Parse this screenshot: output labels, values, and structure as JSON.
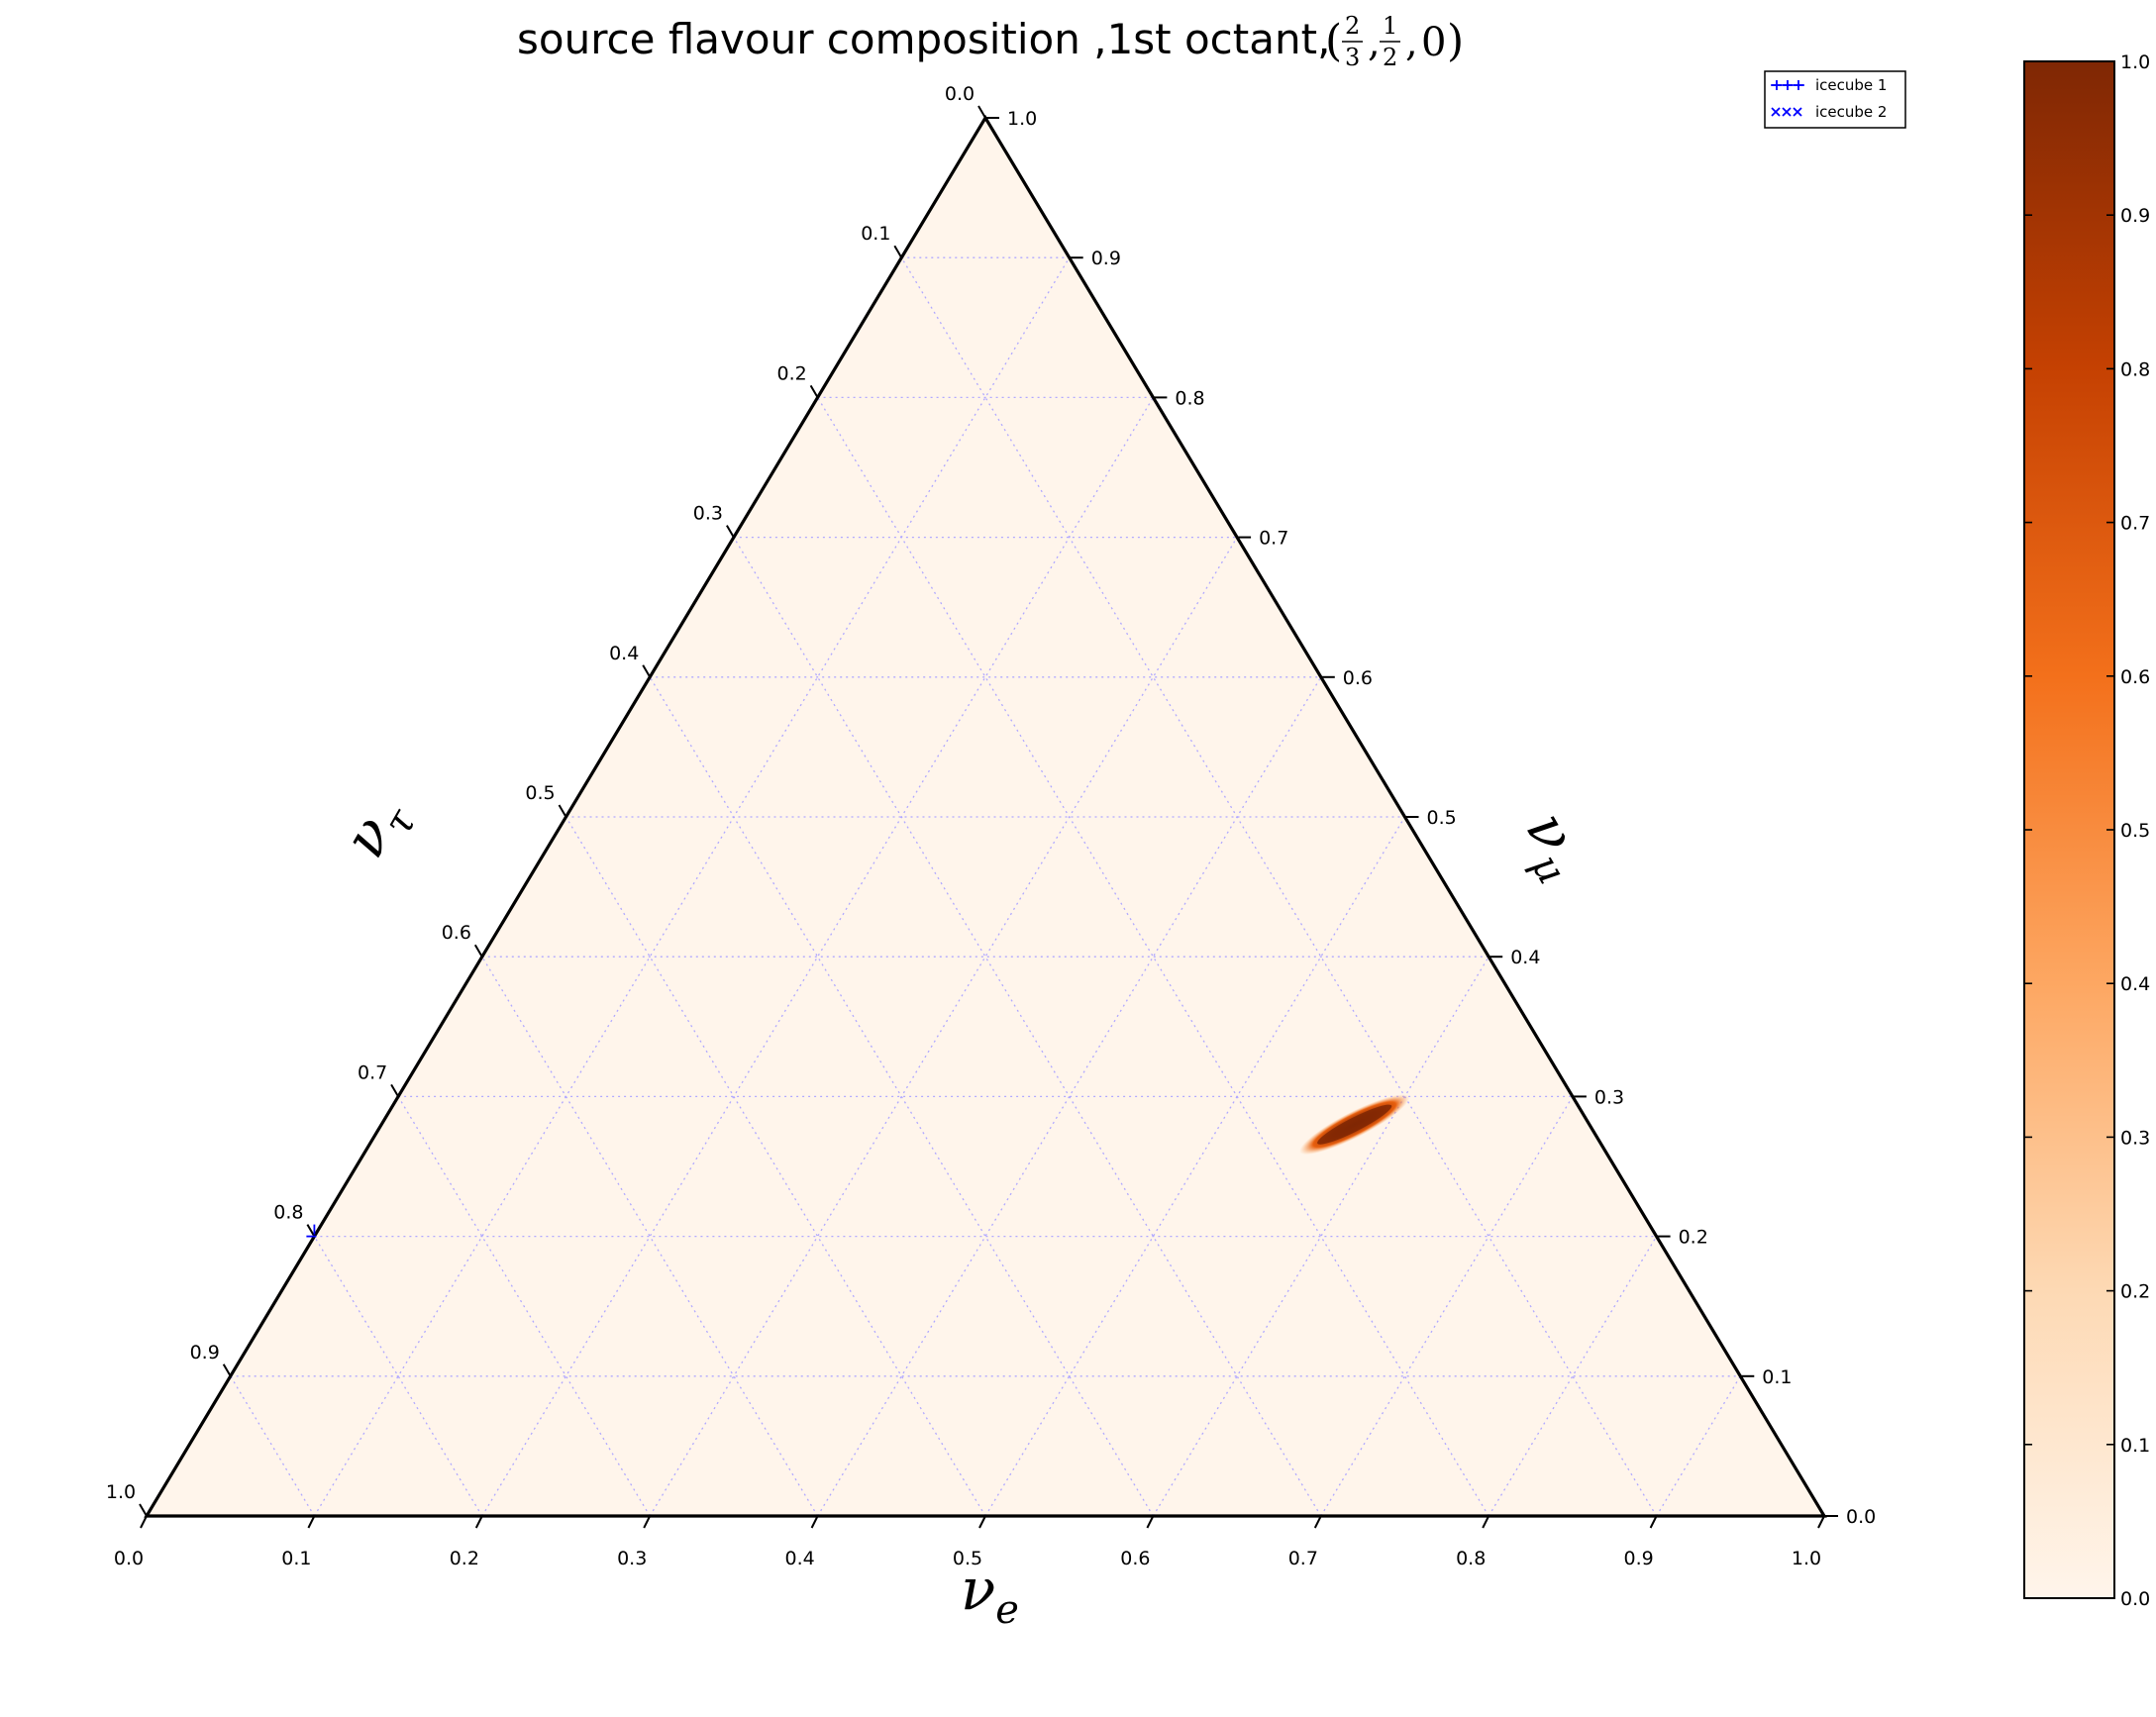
{
  "chart_data": {
    "type": "heatmap",
    "subtype": "ternary",
    "title": "source flavour composition ,1st octant,",
    "title_math": {
      "open": "(",
      "frac1": {
        "num": "2",
        "den": "3"
      },
      "sep1": ",",
      "frac2": {
        "num": "1",
        "den": "2"
      },
      "sep2": ",",
      "last": "0",
      "close": ")"
    },
    "axes": {
      "bottom": {
        "label_base": "ν",
        "label_sub": "e",
        "range": [
          0,
          1
        ]
      },
      "right": {
        "label_base": "ν",
        "label_sub": "μ",
        "range": [
          0,
          1
        ]
      },
      "left": {
        "label_base": "ν",
        "label_sub": "τ",
        "range": [
          0,
          1
        ]
      }
    },
    "ticks": [
      "0.0",
      "0.1",
      "0.2",
      "0.3",
      "0.4",
      "0.5",
      "0.6",
      "0.7",
      "0.8",
      "0.9",
      "1.0"
    ],
    "grid": true,
    "legend": {
      "position": "top-right",
      "entries": [
        {
          "label": "icecube 1",
          "marker": "+",
          "color": "#0000ff"
        },
        {
          "label": "icecube 2",
          "marker": "x",
          "color": "#0000ff"
        }
      ]
    },
    "colorbar": {
      "colormap": "Oranges",
      "range": [
        0,
        1
      ],
      "ticks": [
        "0.0",
        "0.1",
        "0.2",
        "0.3",
        "0.4",
        "0.5",
        "0.6",
        "0.7",
        "0.8",
        "0.9",
        "1.0"
      ]
    },
    "density_region": {
      "center": {
        "nu_e": 0.58,
        "nu_mu": 0.28,
        "nu_tau": 0.14
      },
      "peak": 1.0,
      "orientation": "elongated along constant nu_tau"
    },
    "markers": [
      {
        "series": "icecube 1",
        "nu_e": 0.0,
        "nu_mu": 0.2,
        "nu_tau": 0.8
      }
    ]
  }
}
